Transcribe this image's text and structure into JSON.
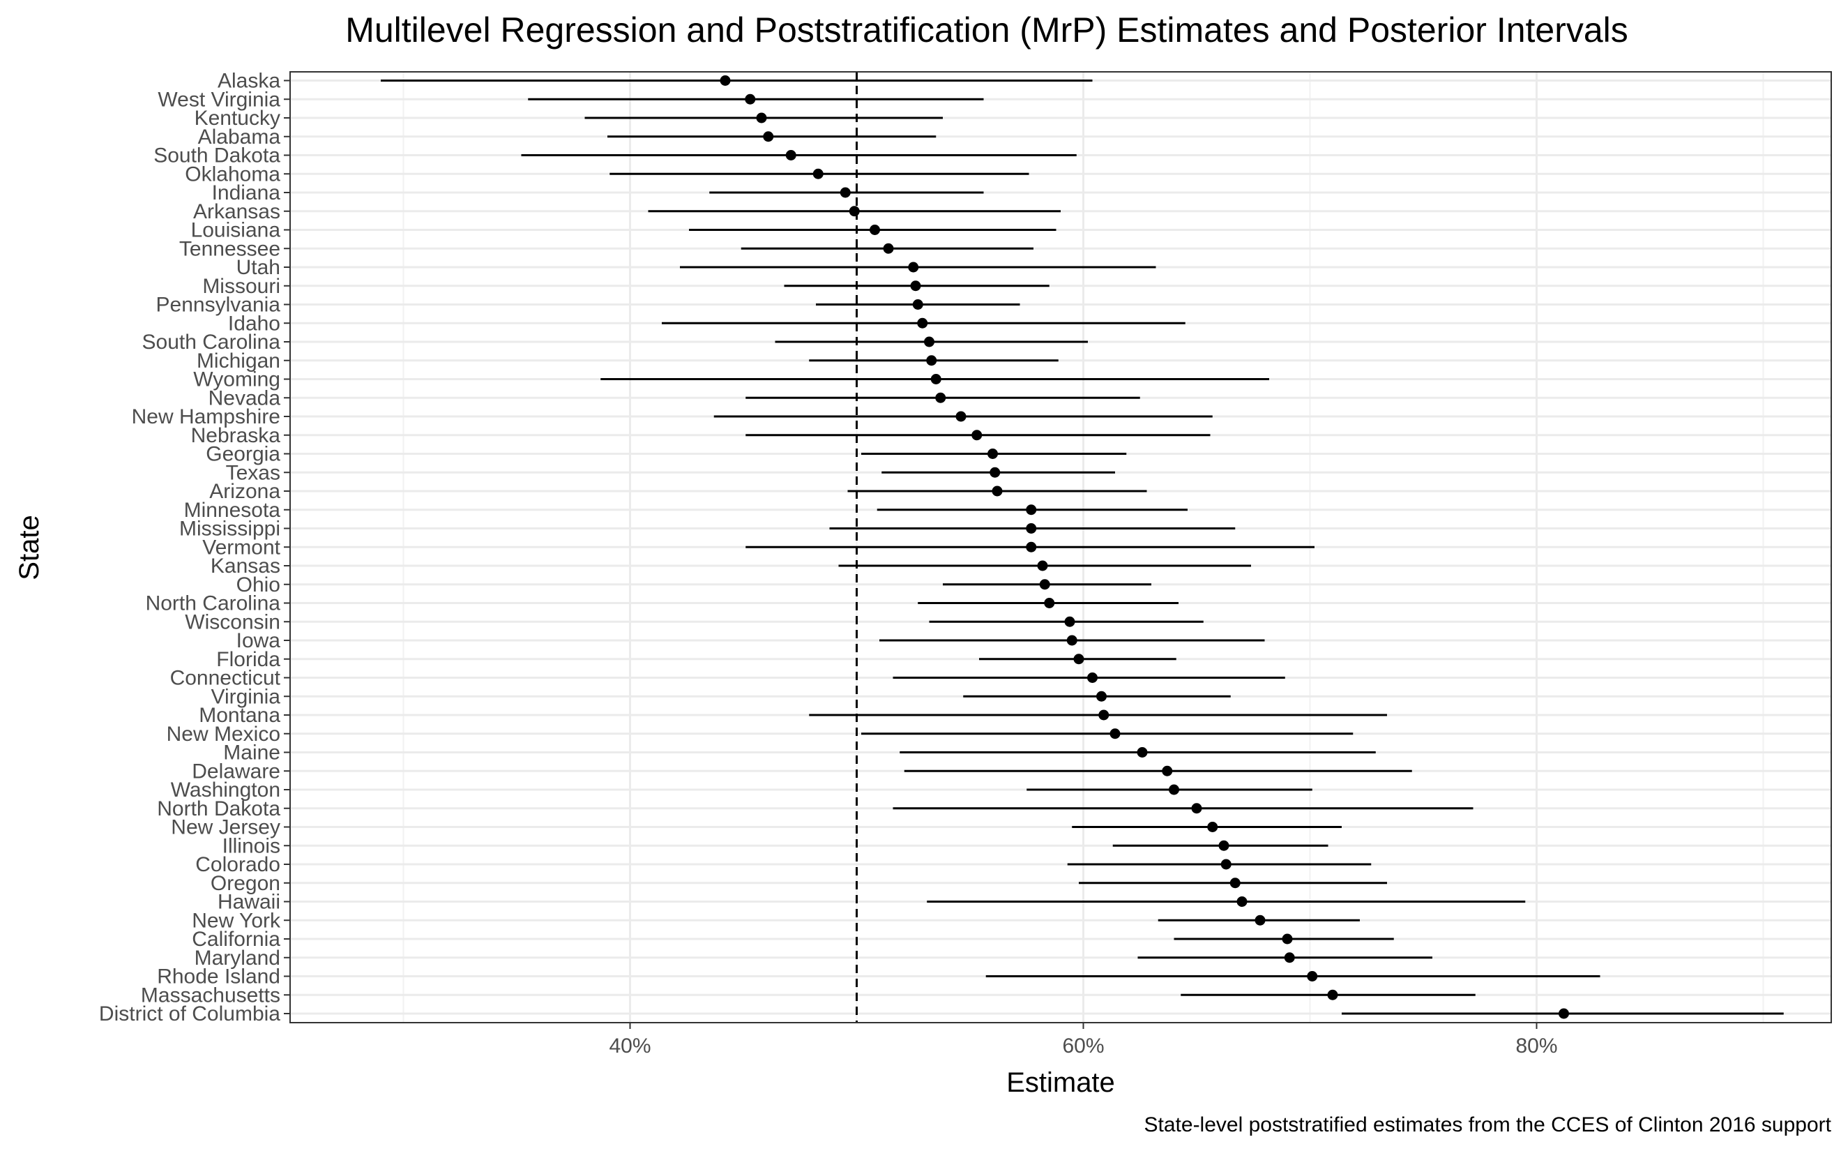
{
  "chart_data": {
    "type": "scatter",
    "title": "Multilevel Regression and Poststratification (MrP) Estimates and Posterior Intervals",
    "xlabel": "Estimate",
    "ylabel": "State",
    "caption": "State-level poststratified estimates from the CCES of Clinton 2016 support",
    "xlim": [
      0.25,
      0.93
    ],
    "xticks": [
      {
        "value": 0.4,
        "label": "40%"
      },
      {
        "value": 0.6,
        "label": "60%"
      },
      {
        "value": 0.8,
        "label": "80%"
      }
    ],
    "reference_line": 0.5,
    "grid": true,
    "points": [
      {
        "state": "Alaska",
        "estimate": 0.442,
        "lower": 0.29,
        "upper": 0.604
      },
      {
        "state": "West Virginia",
        "estimate": 0.453,
        "lower": 0.355,
        "upper": 0.556
      },
      {
        "state": "Kentucky",
        "estimate": 0.458,
        "lower": 0.38,
        "upper": 0.538
      },
      {
        "state": "Alabama",
        "estimate": 0.461,
        "lower": 0.39,
        "upper": 0.535
      },
      {
        "state": "South Dakota",
        "estimate": 0.471,
        "lower": 0.352,
        "upper": 0.597
      },
      {
        "state": "Oklahoma",
        "estimate": 0.483,
        "lower": 0.391,
        "upper": 0.576
      },
      {
        "state": "Indiana",
        "estimate": 0.495,
        "lower": 0.435,
        "upper": 0.556
      },
      {
        "state": "Arkansas",
        "estimate": 0.499,
        "lower": 0.408,
        "upper": 0.59
      },
      {
        "state": "Louisiana",
        "estimate": 0.508,
        "lower": 0.426,
        "upper": 0.588
      },
      {
        "state": "Tennessee",
        "estimate": 0.514,
        "lower": 0.449,
        "upper": 0.578
      },
      {
        "state": "Utah",
        "estimate": 0.525,
        "lower": 0.422,
        "upper": 0.632
      },
      {
        "state": "Missouri",
        "estimate": 0.526,
        "lower": 0.468,
        "upper": 0.585
      },
      {
        "state": "Pennsylvania",
        "estimate": 0.527,
        "lower": 0.482,
        "upper": 0.572
      },
      {
        "state": "Idaho",
        "estimate": 0.529,
        "lower": 0.414,
        "upper": 0.645
      },
      {
        "state": "South Carolina",
        "estimate": 0.532,
        "lower": 0.464,
        "upper": 0.602
      },
      {
        "state": "Michigan",
        "estimate": 0.533,
        "lower": 0.479,
        "upper": 0.589
      },
      {
        "state": "Wyoming",
        "estimate": 0.535,
        "lower": 0.387,
        "upper": 0.682
      },
      {
        "state": "Nevada",
        "estimate": 0.537,
        "lower": 0.451,
        "upper": 0.625
      },
      {
        "state": "New Hampshire",
        "estimate": 0.546,
        "lower": 0.437,
        "upper": 0.657
      },
      {
        "state": "Nebraska",
        "estimate": 0.553,
        "lower": 0.451,
        "upper": 0.656
      },
      {
        "state": "Georgia",
        "estimate": 0.56,
        "lower": 0.502,
        "upper": 0.619
      },
      {
        "state": "Texas",
        "estimate": 0.561,
        "lower": 0.511,
        "upper": 0.614
      },
      {
        "state": "Arizona",
        "estimate": 0.562,
        "lower": 0.496,
        "upper": 0.628
      },
      {
        "state": "Minnesota",
        "estimate": 0.577,
        "lower": 0.509,
        "upper": 0.646
      },
      {
        "state": "Mississippi",
        "estimate": 0.577,
        "lower": 0.488,
        "upper": 0.667
      },
      {
        "state": "Vermont",
        "estimate": 0.577,
        "lower": 0.451,
        "upper": 0.702
      },
      {
        "state": "Kansas",
        "estimate": 0.582,
        "lower": 0.492,
        "upper": 0.674
      },
      {
        "state": "Ohio",
        "estimate": 0.583,
        "lower": 0.538,
        "upper": 0.63
      },
      {
        "state": "North Carolina",
        "estimate": 0.585,
        "lower": 0.527,
        "upper": 0.642
      },
      {
        "state": "Wisconsin",
        "estimate": 0.594,
        "lower": 0.532,
        "upper": 0.653
      },
      {
        "state": "Iowa",
        "estimate": 0.595,
        "lower": 0.51,
        "upper": 0.68
      },
      {
        "state": "Florida",
        "estimate": 0.598,
        "lower": 0.554,
        "upper": 0.641
      },
      {
        "state": "Connecticut",
        "estimate": 0.604,
        "lower": 0.516,
        "upper": 0.689
      },
      {
        "state": "Virginia",
        "estimate": 0.608,
        "lower": 0.547,
        "upper": 0.665
      },
      {
        "state": "Montana",
        "estimate": 0.609,
        "lower": 0.479,
        "upper": 0.734
      },
      {
        "state": "New Mexico",
        "estimate": 0.614,
        "lower": 0.502,
        "upper": 0.719
      },
      {
        "state": "Maine",
        "estimate": 0.626,
        "lower": 0.519,
        "upper": 0.729
      },
      {
        "state": "Delaware",
        "estimate": 0.637,
        "lower": 0.521,
        "upper": 0.745
      },
      {
        "state": "Washington",
        "estimate": 0.64,
        "lower": 0.575,
        "upper": 0.701
      },
      {
        "state": "North Dakota",
        "estimate": 0.65,
        "lower": 0.516,
        "upper": 0.772
      },
      {
        "state": "New Jersey",
        "estimate": 0.657,
        "lower": 0.595,
        "upper": 0.714
      },
      {
        "state": "Illinois",
        "estimate": 0.662,
        "lower": 0.613,
        "upper": 0.708
      },
      {
        "state": "Colorado",
        "estimate": 0.663,
        "lower": 0.593,
        "upper": 0.727
      },
      {
        "state": "Oregon",
        "estimate": 0.667,
        "lower": 0.598,
        "upper": 0.734
      },
      {
        "state": "Hawaii",
        "estimate": 0.67,
        "lower": 0.531,
        "upper": 0.795
      },
      {
        "state": "New York",
        "estimate": 0.678,
        "lower": 0.633,
        "upper": 0.722
      },
      {
        "state": "California",
        "estimate": 0.69,
        "lower": 0.64,
        "upper": 0.737
      },
      {
        "state": "Maryland",
        "estimate": 0.691,
        "lower": 0.624,
        "upper": 0.754
      },
      {
        "state": "Rhode Island",
        "estimate": 0.701,
        "lower": 0.557,
        "upper": 0.828
      },
      {
        "state": "Massachusetts",
        "estimate": 0.71,
        "lower": 0.643,
        "upper": 0.773
      },
      {
        "state": "District of Columbia",
        "estimate": 0.812,
        "lower": 0.714,
        "upper": 0.909
      }
    ]
  }
}
